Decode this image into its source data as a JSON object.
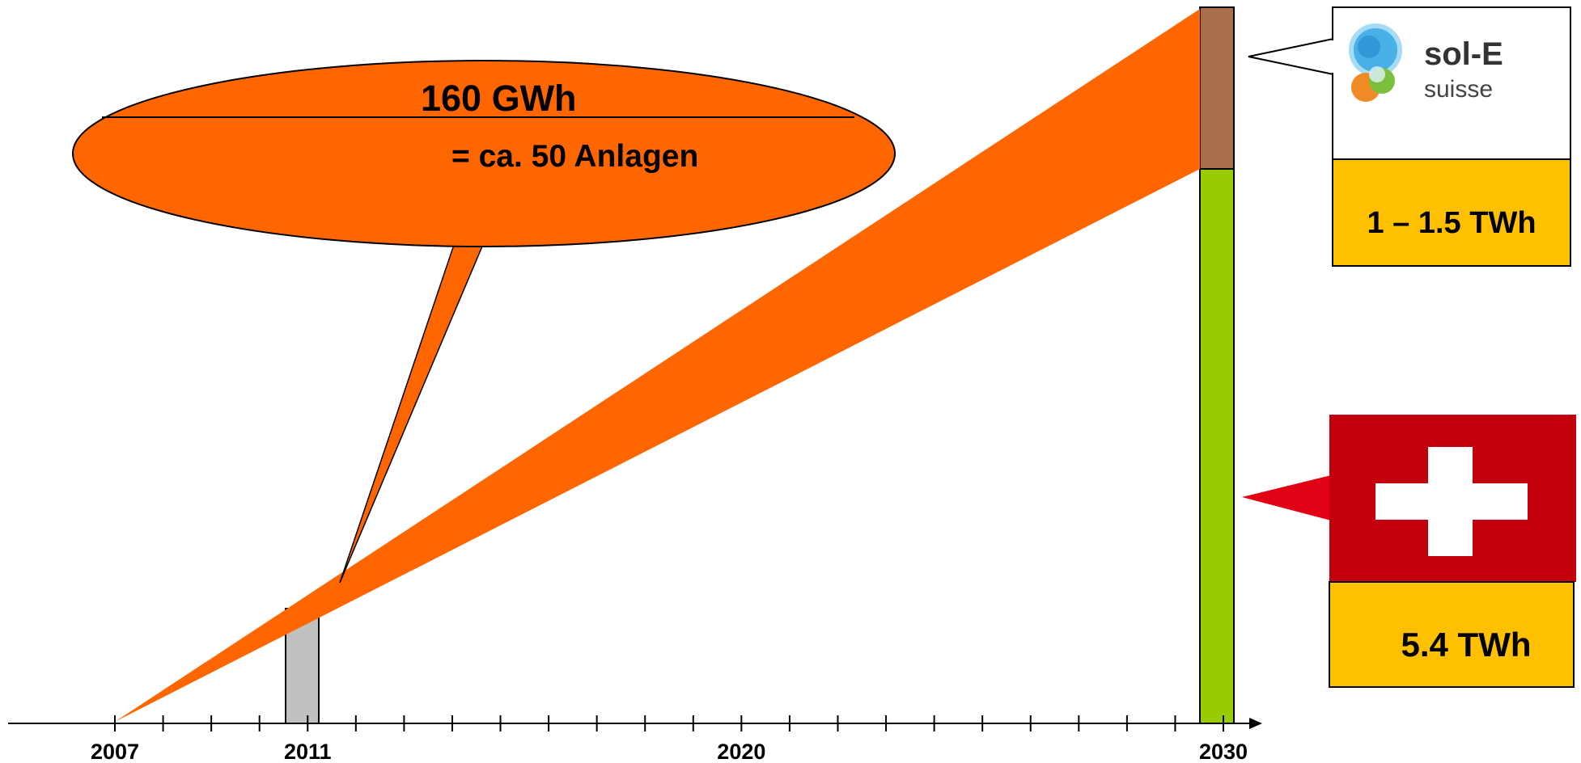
{
  "timeline": {
    "years": [
      {
        "year": 2007,
        "label": "2007"
      },
      {
        "year": 2011,
        "label": "2011"
      },
      {
        "year": 2020,
        "label": "2020"
      },
      {
        "year": 2030,
        "label": "2030"
      }
    ],
    "range": [
      2007,
      2030
    ]
  },
  "callout": {
    "energy": "160 GWh",
    "plants": "= ca. 50 Anlagen"
  },
  "sol_e": {
    "logo_line1": "sol-E",
    "logo_line2": "suisse",
    "value": "1 – 1.5 TWh"
  },
  "swiss": {
    "value": "5.4 TWh"
  },
  "colors": {
    "orange": "#ff6600",
    "green": "#99cc00",
    "brown": "#a86f4a",
    "gray": "#c0c0c0",
    "yellow": "#ffc000",
    "swiss_red": "#c4000f"
  }
}
